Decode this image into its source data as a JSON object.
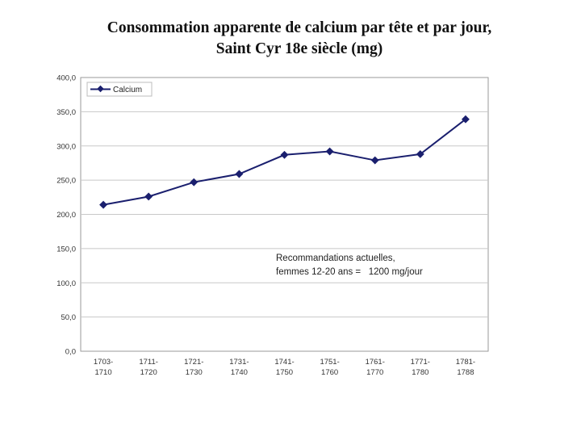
{
  "chart_data": {
    "type": "line",
    "title": "Consommation apparente de calcium par tête et par jour,",
    "subtitle": "Saint Cyr 18e siècle (mg)",
    "xlabel": "",
    "ylabel": "",
    "ylim": [
      0,
      400
    ],
    "yticks": [
      "0,0",
      "50,0",
      "100,0",
      "150,0",
      "200,0",
      "250,0",
      "300,0",
      "350,0",
      "400,0"
    ],
    "categories": [
      [
        "1703-",
        "1710"
      ],
      [
        "1711-",
        "1720"
      ],
      [
        "1721-",
        "1730"
      ],
      [
        "1731-",
        "1740"
      ],
      [
        "1741-",
        "1750"
      ],
      [
        "1751-",
        "1760"
      ],
      [
        "1761-",
        "1770"
      ],
      [
        "1771-",
        "1780"
      ],
      [
        "1781-",
        "1788"
      ]
    ],
    "series": [
      {
        "name": "Calcium",
        "color": "#1a1f6e",
        "values": [
          214,
          226,
          247,
          259,
          287,
          292,
          279,
          288,
          339
        ]
      }
    ],
    "legend": "top-left",
    "grid": true,
    "annotation": [
      "Recommandations actuelles,",
      "femmes 12-20 ans =   1200 mg/jour"
    ]
  }
}
